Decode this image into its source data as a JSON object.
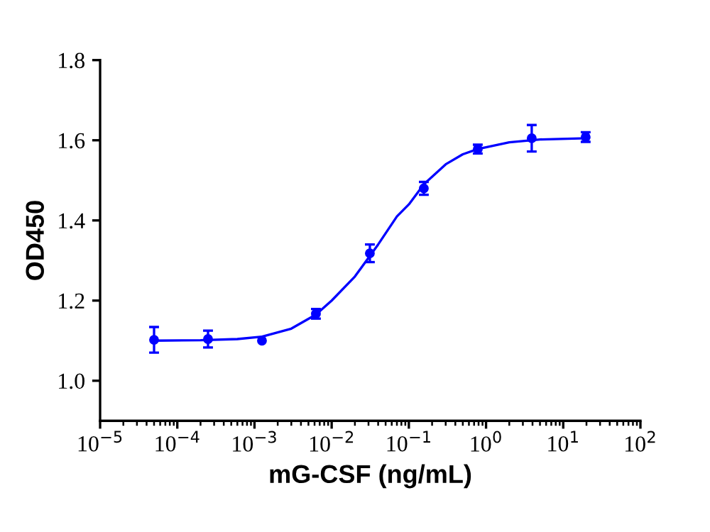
{
  "chart_data": {
    "type": "scatter",
    "xlabel": "mG-CSF (ng/mL)",
    "ylabel": "OD450",
    "log": "x",
    "grid": false,
    "xlim": [
      1e-05,
      100
    ],
    "ylim": [
      0.9,
      1.8
    ],
    "xticks": [
      {
        "value": 1e-05,
        "label": "10$^{−5}$"
      },
      {
        "value": 0.0001,
        "label": "10$^{−4}$"
      },
      {
        "value": 0.001,
        "label": "10$^{−3}$"
      },
      {
        "value": 0.01,
        "label": "10$^{−2}$"
      },
      {
        "value": 0.1,
        "label": "10$^{−1}$"
      },
      {
        "value": 1,
        "label": "10$^{0}$"
      },
      {
        "value": 10,
        "label": "10$^{1}$"
      },
      {
        "value": 100,
        "label": "10$^{2}$"
      }
    ],
    "yticks": [
      {
        "value": 1.0,
        "label": "1.0"
      },
      {
        "value": 1.2,
        "label": "1.2"
      },
      {
        "value": 1.4,
        "label": "1.4"
      },
      {
        "value": 1.6,
        "label": "1.6"
      },
      {
        "value": 1.8,
        "label": "1.8"
      }
    ],
    "series": [
      {
        "color": "#0000ff",
        "marker": "circle",
        "x": [
          5e-05,
          0.00025,
          0.00125,
          0.00625,
          0.03125,
          0.15625,
          0.78125,
          3.90625,
          19.53125
        ],
        "values": [
          1.102,
          1.104,
          1.1,
          1.167,
          1.318,
          1.48,
          1.578,
          1.605,
          1.608
        ],
        "errors": [
          0.032,
          0.021,
          null,
          0.012,
          0.022,
          0.016,
          0.011,
          0.033,
          0.012
        ]
      },
      {
        "type": "line",
        "color": "#0000ff",
        "marker": "none",
        "line_style": "solid",
        "x": [
          5e-05,
          0.0002,
          0.0006,
          0.00125,
          0.003,
          0.00625,
          0.01,
          0.02,
          0.04,
          0.07,
          0.1,
          0.156,
          0.3,
          0.5,
          0.78,
          2,
          5,
          19.5
        ],
        "values": [
          1.1,
          1.101,
          1.104,
          1.11,
          1.13,
          1.165,
          1.2,
          1.26,
          1.34,
          1.41,
          1.44,
          1.49,
          1.54,
          1.565,
          1.578,
          1.595,
          1.602,
          1.605
        ]
      }
    ]
  }
}
